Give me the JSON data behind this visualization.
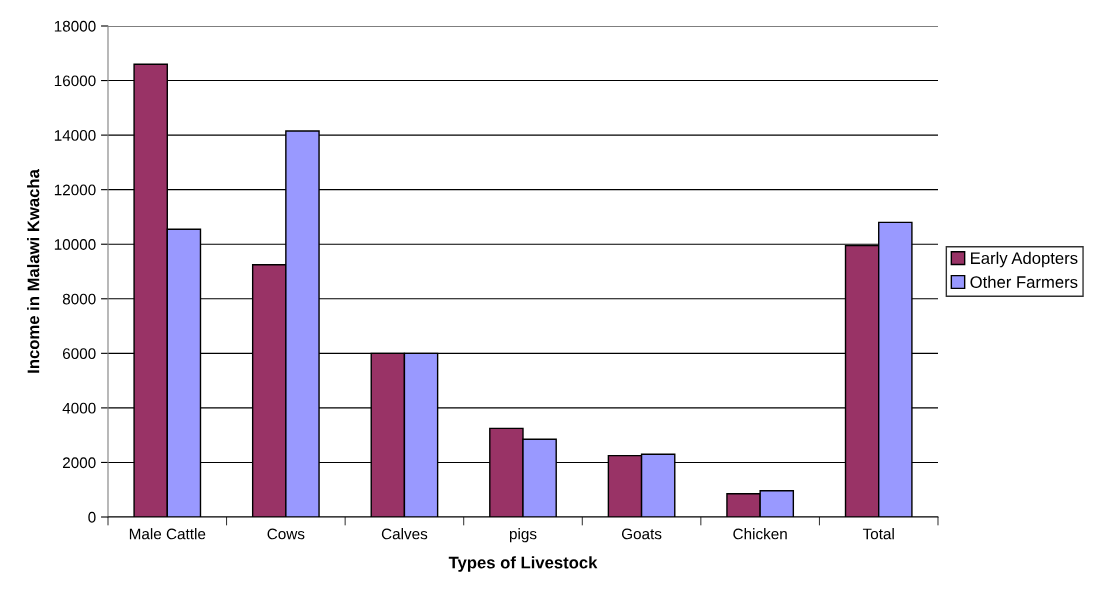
{
  "chart_data": {
    "type": "bar",
    "xlabel": "Types of Livestock",
    "ylabel": "Income in Malawi Kwacha",
    "categories": [
      "Male Cattle",
      "Cows",
      "Calves",
      "pigs",
      "Goats",
      "Chicken",
      "Total"
    ],
    "series": [
      {
        "name": "Early Adopters",
        "color": "#993366",
        "values": [
          16600,
          9250,
          6000,
          3250,
          2250,
          850,
          9950
        ]
      },
      {
        "name": "Other Farmers",
        "color": "#9999ff",
        "values": [
          10550,
          14150,
          6000,
          2850,
          2300,
          960,
          10800
        ]
      }
    ],
    "ylim": [
      0,
      18000
    ],
    "yticks": [
      0,
      2000,
      4000,
      6000,
      8000,
      10000,
      12000,
      14000,
      16000,
      18000
    ],
    "grid": "y",
    "legend": "right"
  }
}
